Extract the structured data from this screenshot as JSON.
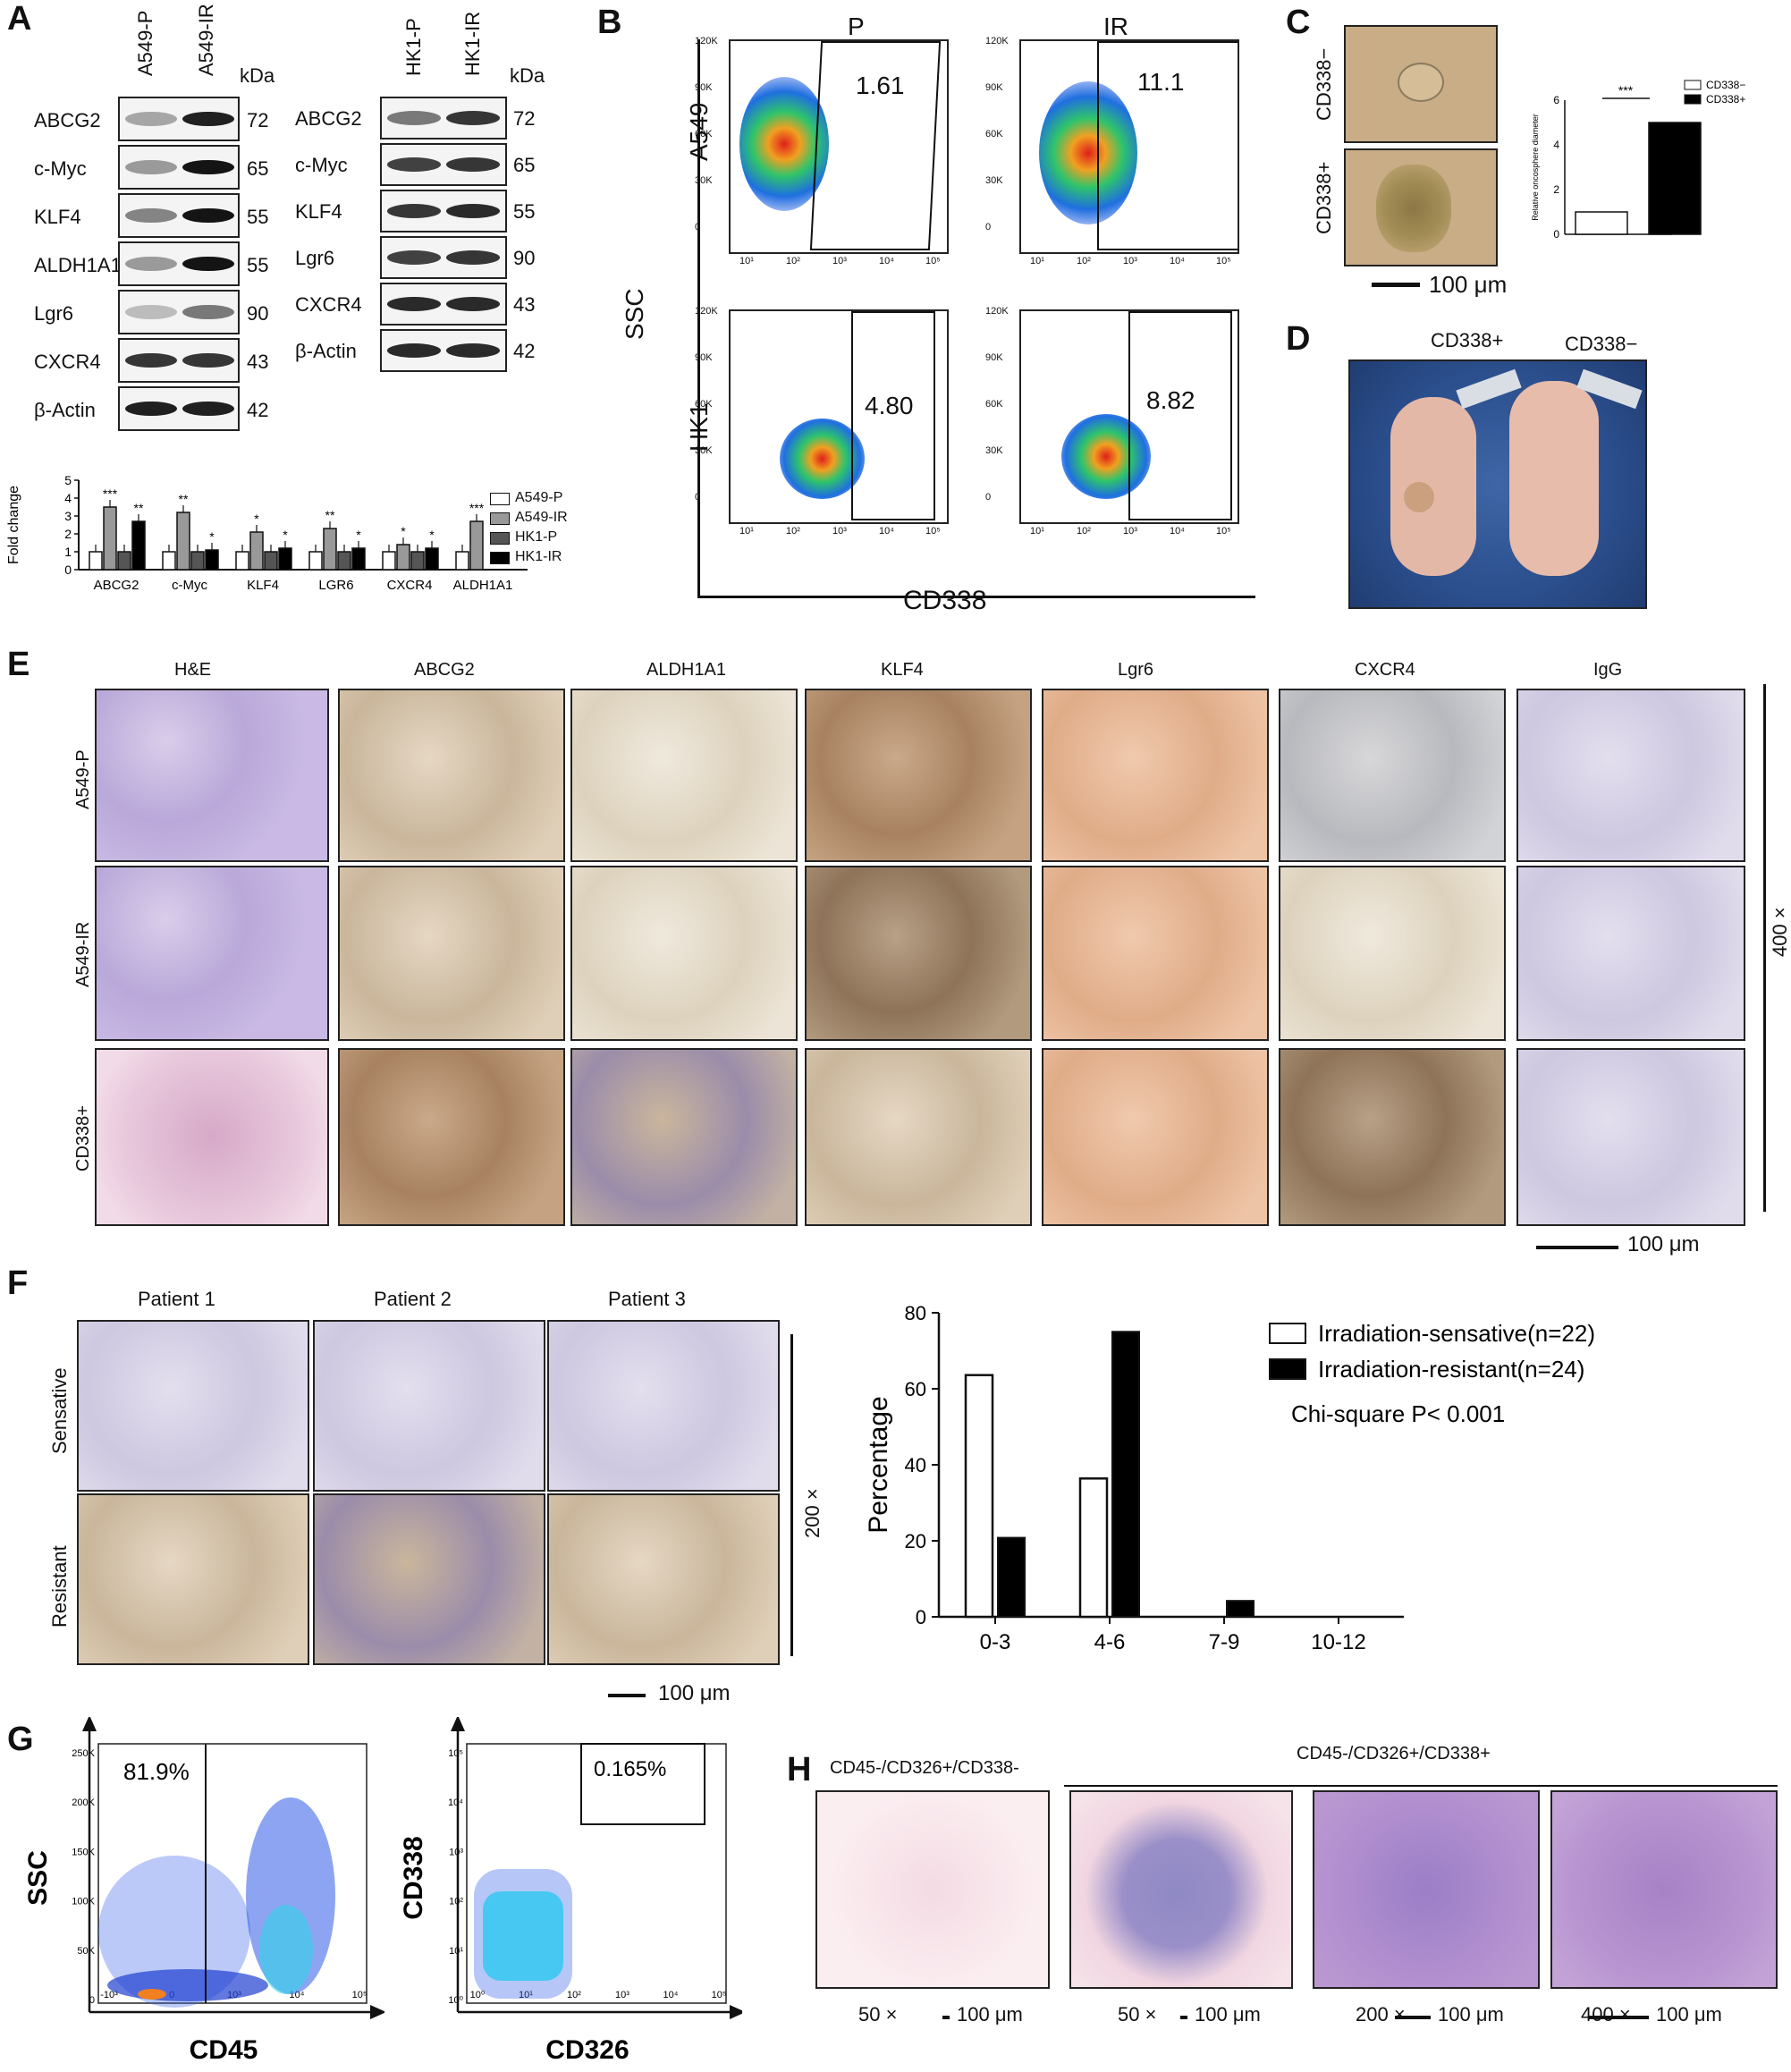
{
  "panel_labels": {
    "A": "A",
    "B": "B",
    "C": "C",
    "D": "D",
    "E": "E",
    "F": "F",
    "G": "G",
    "H": "H"
  },
  "panelA": {
    "left_lanes": [
      "A549-P",
      "A549-IR"
    ],
    "right_lanes": [
      "HK1-P",
      "HK1-IR"
    ],
    "kda_label": "kDa",
    "left_rows": [
      {
        "name": "ABCG2",
        "kda": "72"
      },
      {
        "name": "c-Myc",
        "kda": "65"
      },
      {
        "name": "KLF4",
        "kda": "55"
      },
      {
        "name": "ALDH1A1",
        "kda": "55"
      },
      {
        "name": "Lgr6",
        "kda": "90"
      },
      {
        "name": "CXCR4",
        "kda": "43"
      },
      {
        "name": "β-Actin",
        "kda": "42"
      }
    ],
    "right_rows": [
      {
        "name": "ABCG2",
        "kda": "72"
      },
      {
        "name": "c-Myc",
        "kda": "65"
      },
      {
        "name": "KLF4",
        "kda": "55"
      },
      {
        "name": "Lgr6",
        "kda": "90"
      },
      {
        "name": "CXCR4",
        "kda": "43"
      },
      {
        "name": "β-Actin",
        "kda": "42"
      }
    ]
  },
  "chart_data": {
    "type": "bar",
    "ylabel": "Fold change",
    "ylim": [
      0,
      5
    ],
    "yticks": [
      "0",
      "1",
      "2",
      "3",
      "4",
      "5"
    ],
    "categories": [
      "ABCG2",
      "c-Myc",
      "KLF4",
      "LGR6",
      "CXCR4",
      "ALDH1A1"
    ],
    "series": [
      {
        "name": "A549-P",
        "values": [
          1.0,
          1.0,
          1.0,
          1.0,
          1.0,
          1.0
        ],
        "color": "#ffffff"
      },
      {
        "name": "A549-IR",
        "values": [
          3.5,
          3.2,
          2.1,
          2.3,
          1.4,
          2.7
        ],
        "color": "#999999"
      },
      {
        "name": "HK1-P",
        "values": [
          1.0,
          1.0,
          1.0,
          1.0,
          1.0,
          null
        ],
        "color": "#555555"
      },
      {
        "name": "HK1-IR",
        "values": [
          2.7,
          1.1,
          1.2,
          1.2,
          1.2,
          null
        ],
        "color": "#000000"
      }
    ],
    "significance": [
      [
        "***",
        "",
        "**"
      ],
      [
        "**",
        "",
        "*"
      ],
      [
        "*",
        "",
        "*"
      ],
      [
        "**",
        "",
        "*"
      ],
      [
        "*",
        "",
        "*"
      ],
      [
        "***"
      ]
    ]
  },
  "panelB": {
    "col_titles": [
      "P",
      "IR"
    ],
    "row_titles": [
      "A549",
      "HK1"
    ],
    "xlabel": "CD338",
    "ylabel": "SSC",
    "yticks": [
      "120K",
      "90K",
      "60K",
      "30K",
      "0"
    ],
    "yticks2": [
      "120K",
      "90K",
      "60K",
      "30K",
      "0"
    ],
    "xticks": [
      "10¹",
      "10²",
      "10³",
      "10⁴",
      "10⁵"
    ],
    "gate_values": [
      "1.61",
      "11.1",
      "4.80",
      "8.82"
    ]
  },
  "panelC": {
    "row_labels": [
      "CD338−",
      "CD338+"
    ],
    "scale": "100 μm",
    "chart": {
      "ylabel": "Relative oncosphere diameter",
      "yticks": [
        "0",
        "2",
        "4",
        "6"
      ],
      "ylim": [
        0,
        6
      ],
      "values": [
        1.0,
        5.0
      ],
      "sig": "***",
      "legend": [
        "CD338−",
        "CD338+"
      ]
    }
  },
  "panelD": {
    "labels": [
      "CD338+",
      "CD338−"
    ]
  },
  "panelE": {
    "cols": [
      "H&E",
      "ABCG2",
      "ALDH1A1",
      "KLF4",
      "Lgr6",
      "CXCR4",
      "IgG"
    ],
    "rows": [
      "A549-P",
      "A549-IR",
      "CD338+"
    ],
    "mag": "400 ×",
    "scale": "100 μm"
  },
  "panelF": {
    "cols": [
      "Patient 1",
      "Patient 2",
      "Patient 3"
    ],
    "rows": [
      "Sensative",
      "Resistant"
    ],
    "mag": "200 ×",
    "scale": "100 μm",
    "chart": {
      "ylabel": "Percentage",
      "ylim": [
        0,
        80
      ],
      "yticks": [
        "0",
        "20",
        "40",
        "60",
        "80"
      ],
      "categories": [
        "0-3",
        "4-6",
        "7-9",
        "10-12"
      ],
      "sensitive": [
        63.6,
        36.4,
        0,
        0
      ],
      "resistant": [
        20.8,
        75.0,
        4.2,
        0
      ],
      "legend": [
        "Irradiation-sensative(n=22)",
        "Irradiation-resistant(n=24)"
      ],
      "note": "Chi-square P< 0.001"
    }
  },
  "panelG": {
    "left": {
      "xlabel": "CD45",
      "ylabel": "SSC",
      "gate": "81.9%",
      "yticks": [
        "250K",
        "200K",
        "150K",
        "100K",
        "50K",
        "0"
      ],
      "xticks": [
        "-10³",
        "0",
        "10³",
        "10⁴",
        "10⁵"
      ]
    },
    "right": {
      "xlabel": "CD326",
      "ylabel": "CD338",
      "gate": "0.165%",
      "yticks": [
        "10⁵",
        "10⁴",
        "10³",
        "10²",
        "10¹",
        "10⁰"
      ],
      "xticks": [
        "10⁰",
        "10¹",
        "10²",
        "10³",
        "10⁴",
        "10⁵"
      ]
    }
  },
  "panelH": {
    "group1": "CD45-/CD326+/CD338-",
    "group2": "CD45-/CD326+/CD338+",
    "mags": [
      "50 ×",
      "50 ×",
      "200 ×",
      "400 ×"
    ],
    "scales": [
      "100 μm",
      "100 μm",
      "100 μm",
      "100 μm"
    ]
  }
}
